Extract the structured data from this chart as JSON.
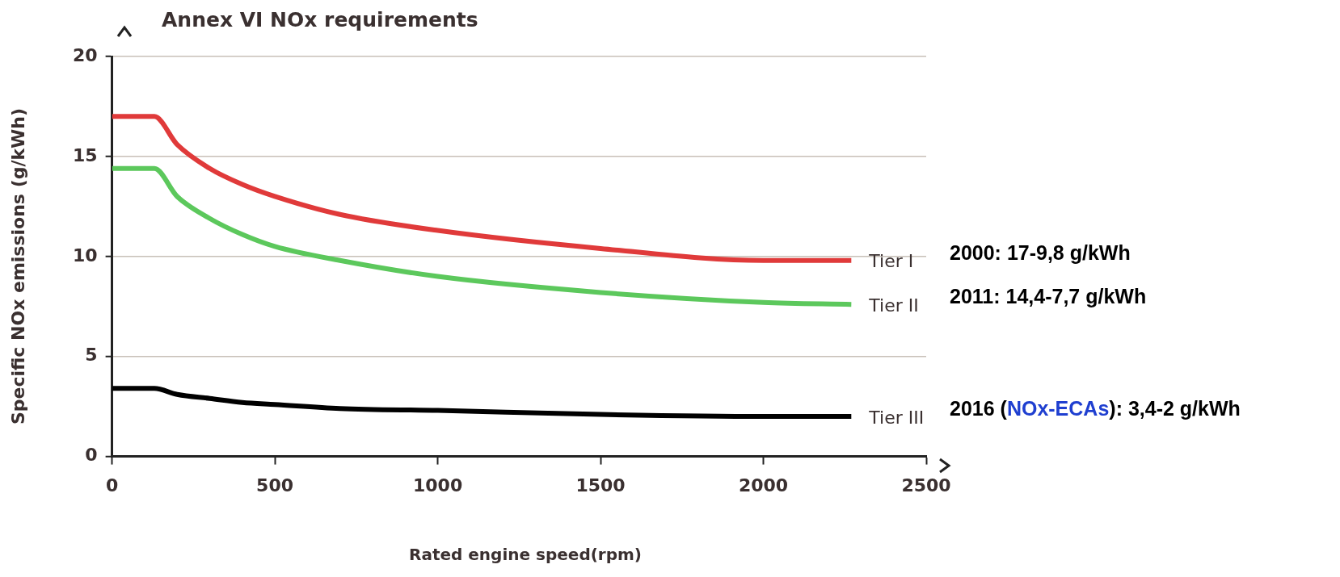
{
  "chart_data": {
    "type": "line",
    "title": "Annex VI NOx requirements",
    "xlabel": "Rated engine speed(rpm)",
    "ylabel": "Specific NOx emissions (g/kWh)",
    "xlim": [
      0,
      2500
    ],
    "xticks": [
      0,
      500,
      1000,
      1500,
      2000,
      2500
    ],
    "ylim": [
      0,
      20
    ],
    "yticks": [
      0,
      5,
      10,
      15,
      20
    ],
    "grid": "y",
    "legend": false,
    "marker": "none",
    "line_style": "solid",
    "x": [
      0,
      130,
      200,
      300,
      400,
      500,
      700,
      1000,
      1500,
      2000,
      2270
    ],
    "series": [
      {
        "name": "Tier I",
        "color": "#e03a3a",
        "values": [
          17,
          17,
          15.6,
          14.4,
          13.6,
          13.0,
          12.1,
          11.3,
          10.4,
          9.8,
          9.8
        ]
      },
      {
        "name": "Tier II",
        "color": "#5cc85c",
        "values": [
          14.4,
          14.4,
          13.0,
          11.9,
          11.1,
          10.5,
          9.8,
          9.0,
          8.2,
          7.7,
          7.6
        ]
      },
      {
        "name": "Tier III",
        "color": "#000000",
        "values": [
          3.4,
          3.4,
          3.1,
          2.9,
          2.7,
          2.6,
          2.4,
          2.3,
          2.1,
          2.0,
          2.0
        ]
      }
    ],
    "annotations": [
      "2000: 17-9,8 g/kWh",
      "2011: 14,4-7,7 g/kWh",
      "2016 (NOx-ECAs): 3,4-2 g/kWh"
    ]
  }
}
